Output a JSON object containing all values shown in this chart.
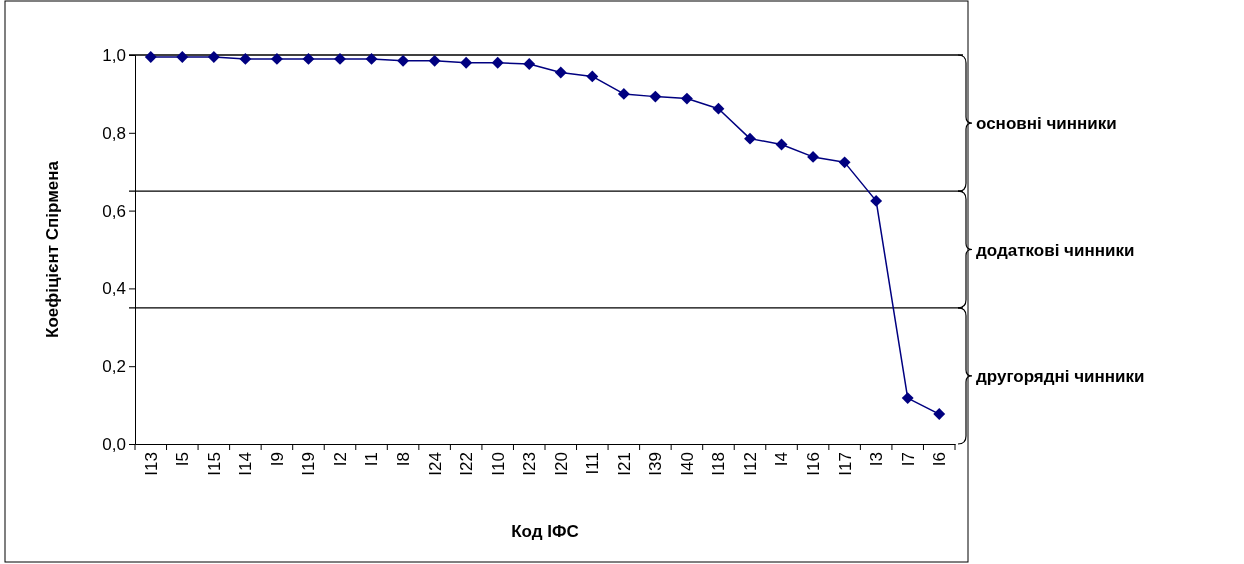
{
  "chart_data": {
    "type": "line",
    "xlabel": "Код ІФС",
    "ylabel": "Коефіцієнт Спірмена",
    "categories": [
      "I13",
      "I5",
      "I15",
      "I14",
      "I9",
      "I19",
      "I2",
      "I1",
      "I8",
      "I24",
      "I22",
      "I10",
      "I23",
      "I20",
      "I11",
      "I21",
      "I39",
      "I40",
      "I18",
      "I12",
      "I4",
      "I16",
      "I17",
      "I3",
      "I7",
      "I6"
    ],
    "series": [
      {
        "color": "#000080",
        "values": [
          0.995,
          0.995,
          0.995,
          0.99,
          0.99,
          0.99,
          0.99,
          0.99,
          0.985,
          0.985,
          0.98,
          0.98,
          0.977,
          0.955,
          0.945,
          0.9,
          0.893,
          0.888,
          0.862,
          0.785,
          0.77,
          0.738,
          0.724,
          0.625,
          0.118,
          0.077
        ]
      }
    ],
    "ylim": [
      0,
      1
    ],
    "yticks": [
      {
        "value": 0,
        "label": "0,0"
      },
      {
        "value": 0.2,
        "label": "0,2"
      },
      {
        "value": 0.4,
        "label": "0,4"
      },
      {
        "value": 0.6,
        "label": "0,6"
      },
      {
        "value": 0.8,
        "label": "0,8"
      },
      {
        "value": 1,
        "label": "1,0"
      }
    ],
    "ref_lines": [
      {
        "axis": "y",
        "value": 1
      },
      {
        "axis": "y",
        "value": 0.65
      },
      {
        "axis": "y",
        "value": 0.35
      }
    ],
    "annotations": [
      "основні чинники",
      "додаткові чинники",
      "другорядні чинники"
    ],
    "marker": "diamond",
    "line_style": "solid",
    "grid": false
  }
}
